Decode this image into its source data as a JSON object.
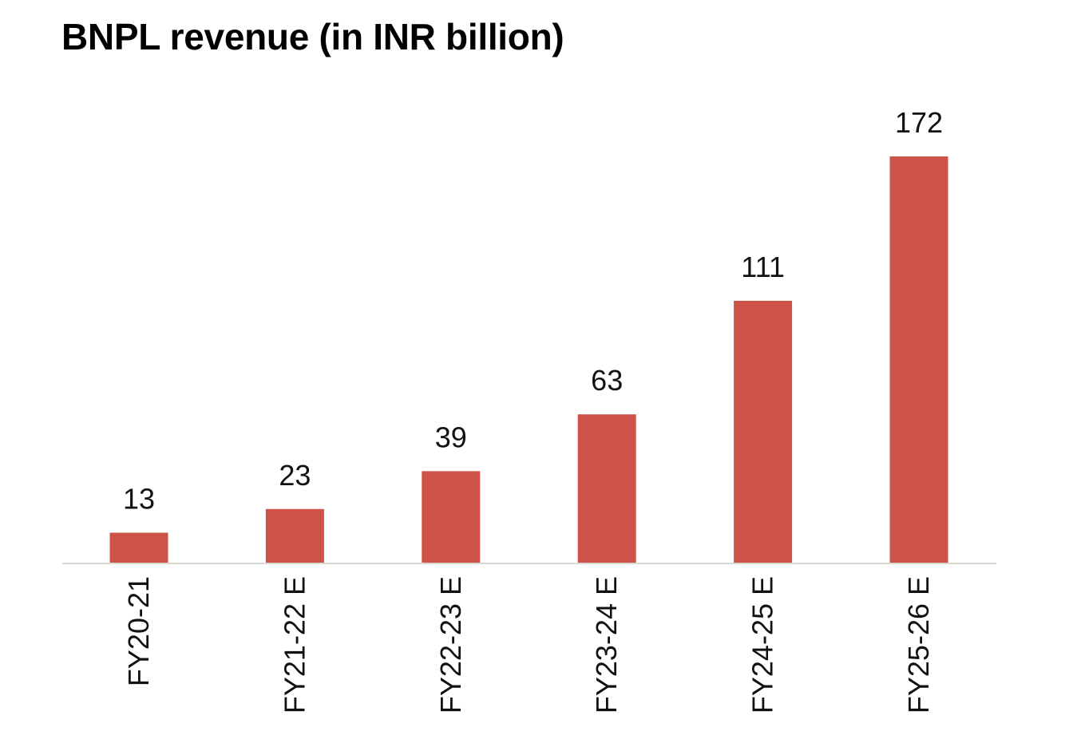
{
  "chart_data": {
    "type": "bar",
    "title": "BNPL revenue (in INR billion)",
    "xlabel": "",
    "ylabel": "",
    "categories": [
      "FY20-21",
      "FY21-22 E",
      "FY22-23 E",
      "FY23-24 E",
      "FY24-25 E",
      "FY25-26 E"
    ],
    "values": [
      13,
      23,
      39,
      63,
      111,
      172
    ],
    "data_labels": [
      "13",
      "23",
      "39",
      "63",
      "111",
      "172"
    ],
    "ylim": [
      0,
      172
    ],
    "grid": false,
    "legend": "none",
    "y_axis_visible": false,
    "x_tick_rotation": "vertical",
    "colors": {
      "bar": "#CD5248",
      "axis": "#D9D9D4",
      "text": "#111111"
    }
  }
}
